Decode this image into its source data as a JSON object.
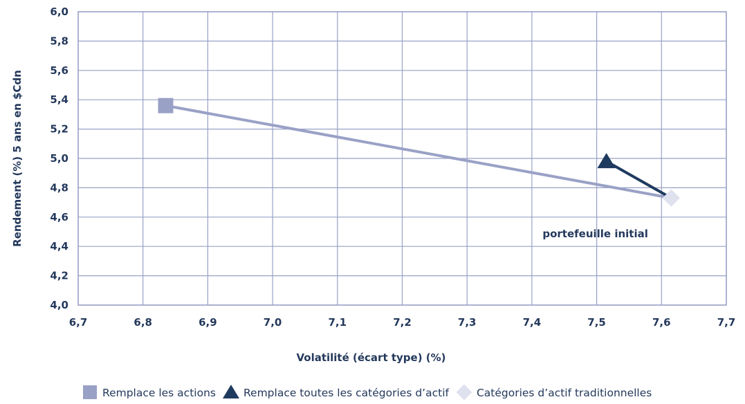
{
  "chart_data": {
    "type": "line",
    "xlabel": "Volatilité (écart type) (%)",
    "ylabel": "Rendement (%) 5 ans en $Cdn",
    "xlim": [
      6.7,
      7.7
    ],
    "ylim": [
      4.0,
      6.0
    ],
    "x_ticks": [
      "6,7",
      "6,8",
      "6,9",
      "7,0",
      "7,1",
      "7,2",
      "7,3",
      "7,4",
      "7,5",
      "7,6",
      "7,7"
    ],
    "y_ticks": [
      "4,0",
      "4,2",
      "4,4",
      "4,6",
      "4,8",
      "5,0",
      "5,2",
      "5,4",
      "5,6",
      "5,8",
      "6,0"
    ],
    "grid": true,
    "series": [
      {
        "name": "Remplace les actions",
        "marker": "square",
        "color": "#99a1c6",
        "points": [
          {
            "x": 6.835,
            "y": 5.36
          },
          {
            "x": 7.615,
            "y": 4.73
          }
        ]
      },
      {
        "name": "Remplace toutes les catégories d’actif",
        "marker": "triangle",
        "color": "#1f3a5f",
        "points": [
          {
            "x": 7.515,
            "y": 4.98
          },
          {
            "x": 7.615,
            "y": 4.73
          }
        ]
      },
      {
        "name": "Catégories d’actif traditionnelles",
        "marker": "diamond",
        "color": "#dfe2ee",
        "points": [
          {
            "x": 7.615,
            "y": 4.73
          }
        ]
      }
    ],
    "annotations": [
      {
        "text": "portefeuille initial",
        "x": 7.615,
        "y": 4.73
      }
    ],
    "legend_position": "bottom"
  }
}
